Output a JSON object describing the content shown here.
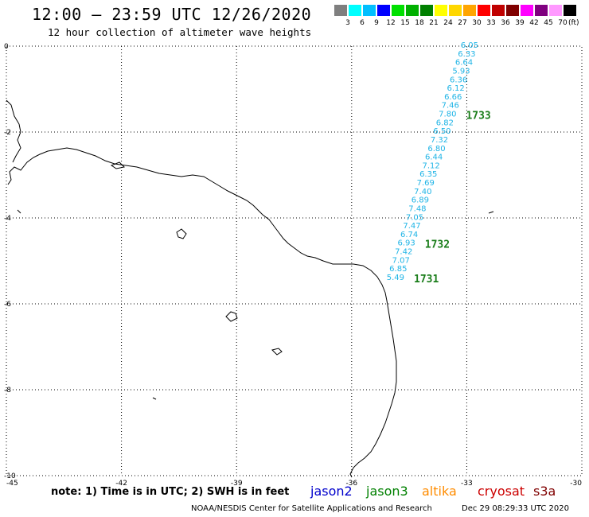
{
  "header": {
    "title": "12:00 – 23:59 UTC 12/26/2020",
    "subtitle": "12 hour collection of altimeter wave heights"
  },
  "scale": {
    "colors": [
      "#7f7f7f",
      "#00ffff",
      "#00bfff",
      "#0000ff",
      "#00e000",
      "#00b000",
      "#008000",
      "#ffff00",
      "#ffd700",
      "#ffa500",
      "#ff0000",
      "#c00000",
      "#800000",
      "#ff00ff",
      "#800080",
      "#ff99ff",
      "#000000"
    ],
    "labels": [
      "3",
      "6",
      "9",
      "12",
      "15",
      "18",
      "21",
      "24",
      "27",
      "30",
      "33",
      "36",
      "39",
      "42",
      "45",
      "70"
    ],
    "unit": "(ft)"
  },
  "map": {
    "x_ticks": [
      "-45",
      "-42",
      "-39",
      "-36",
      "-33",
      "-30"
    ],
    "y_ticks": [
      "0",
      "-2",
      "-4",
      "-6",
      "-8",
      "-10"
    ],
    "lon_range": [
      -45,
      -30
    ],
    "lat_range": [
      -10,
      0
    ],
    "track_color": "#1fb4e6",
    "pass_color": "#1a7d1a",
    "wave_heights": [
      "6.05",
      "6.33",
      "6.64",
      "5.93",
      "6.36",
      "6.12",
      "6.66",
      "7.46",
      "7.80",
      "6.82",
      "6.50",
      "7.32",
      "6.80",
      "6.44",
      "7.12",
      "6.35",
      "7.69",
      "7.40",
      "6.89",
      "7.48",
      "7.05",
      "7.47",
      "6.74",
      "6.93",
      "7.42",
      "7.07",
      "6.85",
      "5.49"
    ],
    "pass_labels": [
      {
        "text": "1733",
        "index": 8
      },
      {
        "text": "1732",
        "index": 23
      },
      {
        "text": "1731",
        "index": 27
      }
    ]
  },
  "footer": {
    "note": "note: 1) Time is in UTC; 2) SWH is in feet",
    "satellites": [
      {
        "name": "jason2",
        "color": "#0000cc"
      },
      {
        "name": "jason3",
        "color": "#008000"
      },
      {
        "name": "altika",
        "color": "#ff8c00"
      },
      {
        "name": "cryosat",
        "color": "#cc0000"
      },
      {
        "name": "s3a",
        "color": "#800000"
      }
    ],
    "credit": "NOAA/NESDIS Center for Satellite Applications and Research",
    "timestamp": "Dec 29 08:29:33 UTC 2020"
  }
}
